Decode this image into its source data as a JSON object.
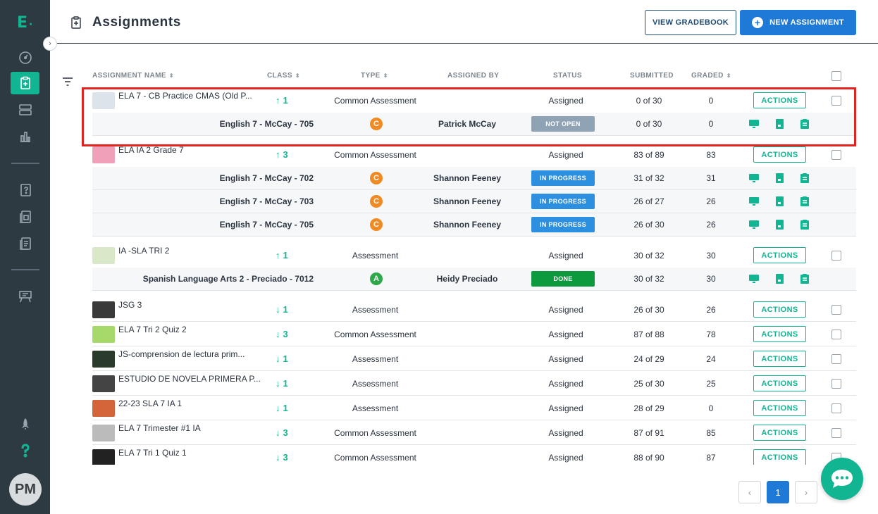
{
  "colors": {
    "accent": "#12b592",
    "primary": "#1e7ad6",
    "sidebar": "#2e3a42",
    "highlight": "#e0231f"
  },
  "sidebar": {
    "logo": "E",
    "avatar_initials": "PM",
    "items": [
      {
        "icon": "dashboard-gauge-icon"
      },
      {
        "icon": "assignments-clipboard-icon",
        "active": true
      },
      {
        "icon": "layers-icon"
      },
      {
        "icon": "bar-chart-icon"
      },
      {
        "icon": "question-bank-icon"
      },
      {
        "icon": "item-bank-icon"
      },
      {
        "icon": "documents-icon"
      },
      {
        "icon": "classroom-easel-icon"
      },
      {
        "icon": "rocket-icon"
      },
      {
        "icon": "help-question-icon"
      }
    ]
  },
  "header": {
    "title": "Assignments",
    "view_gradebook": "VIEW GRADEBOOK",
    "new_assignment": "NEW ASSIGNMENT"
  },
  "table": {
    "columns": [
      "ASSIGNMENT NAME",
      "CLASS",
      "TYPE",
      "ASSIGNED BY",
      "STATUS",
      "SUBMITTED",
      "GRADED"
    ],
    "actions_label": "ACTIONS",
    "rows": [
      {
        "name": "ELA 7 - CB Practice CMAS (Old P...",
        "class_dir": "↑",
        "class_count": "1",
        "type": "Common Assessment",
        "status": "Assigned",
        "submitted": "0 of 30",
        "graded": "0",
        "subs": [
          {
            "class_name": "English 7 - McCay - 705",
            "grade": "C",
            "assigned_by": "Patrick McCay",
            "status": "NOT OPEN",
            "submitted": "0 of 30",
            "graded": "0"
          }
        ]
      },
      {
        "name": "ELA IA 2 Grade 7",
        "class_dir": "↑",
        "class_count": "3",
        "type": "Common Assessment",
        "status": "Assigned",
        "submitted": "83 of 89",
        "graded": "83",
        "subs": [
          {
            "class_name": "English 7 - McCay - 702",
            "grade": "C",
            "assigned_by": "Shannon Feeney",
            "status": "IN PROGRESS",
            "submitted": "31 of 32",
            "graded": "31"
          },
          {
            "class_name": "English 7 - McCay - 703",
            "grade": "C",
            "assigned_by": "Shannon Feeney",
            "status": "IN PROGRESS",
            "submitted": "26 of 27",
            "graded": "26"
          },
          {
            "class_name": "English 7 - McCay - 705",
            "grade": "C",
            "assigned_by": "Shannon Feeney",
            "status": "IN PROGRESS",
            "submitted": "26 of 30",
            "graded": "26"
          }
        ]
      },
      {
        "name": "IA -SLA TRI 2",
        "class_dir": "↑",
        "class_count": "1",
        "type": "Assessment",
        "status": "Assigned",
        "submitted": "30 of 32",
        "graded": "30",
        "subs": [
          {
            "class_name": "Spanish Language Arts 2 - Preciado - 7012",
            "grade": "A",
            "assigned_by": "Heidy Preciado",
            "status": "DONE",
            "submitted": "30 of 32",
            "graded": "30"
          }
        ]
      },
      {
        "name": "JSG 3",
        "class_dir": "↓",
        "class_count": "1",
        "type": "Assessment",
        "status": "Assigned",
        "submitted": "26 of 30",
        "graded": "26"
      },
      {
        "name": "ELA 7 Tri 2 Quiz 2",
        "class_dir": "↓",
        "class_count": "3",
        "type": "Common Assessment",
        "status": "Assigned",
        "submitted": "87 of 88",
        "graded": "78"
      },
      {
        "name": "JS-comprension de lectura prim...",
        "class_dir": "↓",
        "class_count": "1",
        "type": "Assessment",
        "status": "Assigned",
        "submitted": "24 of 29",
        "graded": "24"
      },
      {
        "name": "ESTUDIO DE NOVELA PRIMERA P...",
        "class_dir": "↓",
        "class_count": "1",
        "type": "Assessment",
        "status": "Assigned",
        "submitted": "25 of 30",
        "graded": "25"
      },
      {
        "name": "22-23 SLA 7 IA 1",
        "class_dir": "↓",
        "class_count": "1",
        "type": "Assessment",
        "status": "Assigned",
        "submitted": "28 of 29",
        "graded": "0"
      },
      {
        "name": "ELA 7 Trimester #1 IA",
        "class_dir": "↓",
        "class_count": "3",
        "type": "Common Assessment",
        "status": "Assigned",
        "submitted": "87 of 91",
        "graded": "85"
      },
      {
        "name": "ELA 7 Tri 1 Quiz 1",
        "class_dir": "↓",
        "class_count": "3",
        "type": "Common Assessment",
        "status": "Assigned",
        "submitted": "88 of 90",
        "graded": "87"
      }
    ]
  },
  "pagination": {
    "prev": "‹",
    "current": "1",
    "next": "›"
  }
}
